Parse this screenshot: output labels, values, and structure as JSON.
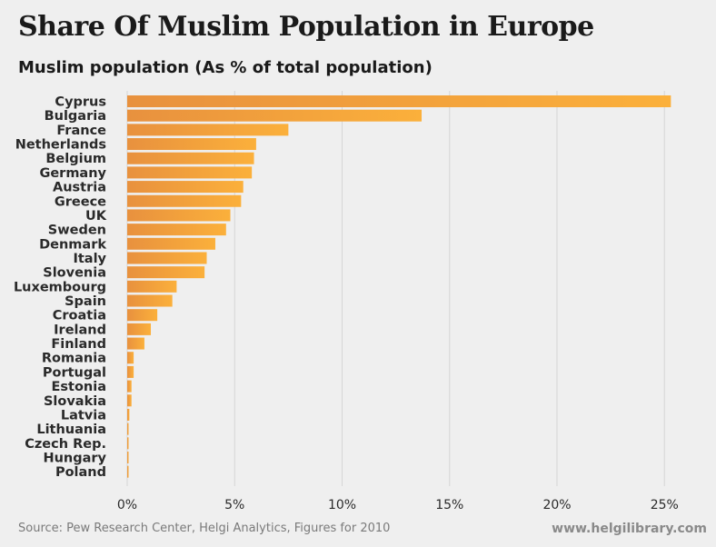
{
  "header": {
    "title": "Share Of Muslim Population in Europe",
    "subtitle": "Muslim population (As % of total population)"
  },
  "footer": {
    "source": "Source: Pew Research Center, Helgi Analytics, Figures for 2010",
    "website": "www.helgilibrary.com"
  },
  "colors": {
    "bar_start": "#e8913e",
    "bar_end": "#fbb03b",
    "grid": "#d6d6d6",
    "background": "#efefef"
  },
  "chart_data": {
    "type": "bar",
    "orientation": "horizontal",
    "title": "Share Of Muslim Population in Europe",
    "subtitle": "Muslim population (As % of total population)",
    "xlabel": "",
    "ylabel": "",
    "xlim": [
      0,
      27
    ],
    "x_ticks": [
      0,
      5,
      10,
      15,
      20,
      25
    ],
    "x_tick_labels": [
      "0%",
      "5%",
      "10%",
      "15%",
      "20%",
      "25%"
    ],
    "grid": true,
    "categories": [
      "Cyprus",
      "Bulgaria",
      "France",
      "Netherlands",
      "Belgium",
      "Germany",
      "Austria",
      "Greece",
      "UK",
      "Sweden",
      "Denmark",
      "Italy",
      "Slovenia",
      "Luxembourg",
      "Spain",
      "Croatia",
      "Ireland",
      "Finland",
      "Romania",
      "Portugal",
      "Estonia",
      "Slovakia",
      "Latvia",
      "Lithuania",
      "Czech Rep.",
      "Hungary",
      "Poland"
    ],
    "values": [
      25.3,
      13.7,
      7.5,
      6.0,
      5.9,
      5.8,
      5.4,
      5.3,
      4.8,
      4.6,
      4.1,
      3.7,
      3.6,
      2.3,
      2.1,
      1.4,
      1.1,
      0.8,
      0.3,
      0.3,
      0.2,
      0.2,
      0.1,
      0.05,
      0.05,
      0.05,
      0.05
    ]
  }
}
